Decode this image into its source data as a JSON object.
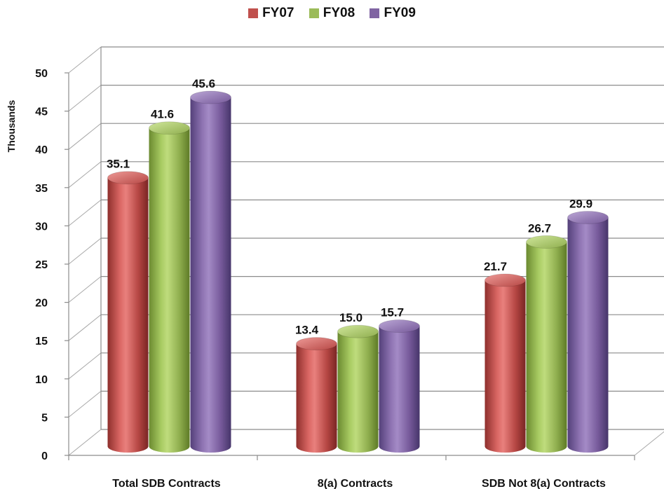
{
  "chart_data": {
    "type": "bar",
    "categories": [
      "Total SDB Contracts",
      "8(a) Contracts",
      "SDB Not 8(a) Contracts"
    ],
    "series": [
      {
        "name": "FY07",
        "values": [
          35.1,
          13.4,
          21.7
        ],
        "labels": [
          "35.1",
          "13.4",
          "21.7"
        ],
        "color": "#c0504d"
      },
      {
        "name": "FY08",
        "values": [
          41.6,
          15.0,
          26.7
        ],
        "labels": [
          "41.6",
          "15.0",
          "26.7"
        ],
        "color": "#9bbb59"
      },
      {
        "name": "FY09",
        "values": [
          45.6,
          15.7,
          29.9
        ],
        "labels": [
          "45.6",
          "15.7",
          "29.9"
        ],
        "color": "#8064a2"
      }
    ],
    "ylabel": "Thousands",
    "ylim": [
      0,
      50
    ],
    "yticks": [
      "0",
      "5",
      "10",
      "15",
      "20",
      "25",
      "30",
      "35",
      "40",
      "45",
      "50"
    ],
    "grid": true,
    "legend_position": "top",
    "style": "3d-cylinder"
  }
}
